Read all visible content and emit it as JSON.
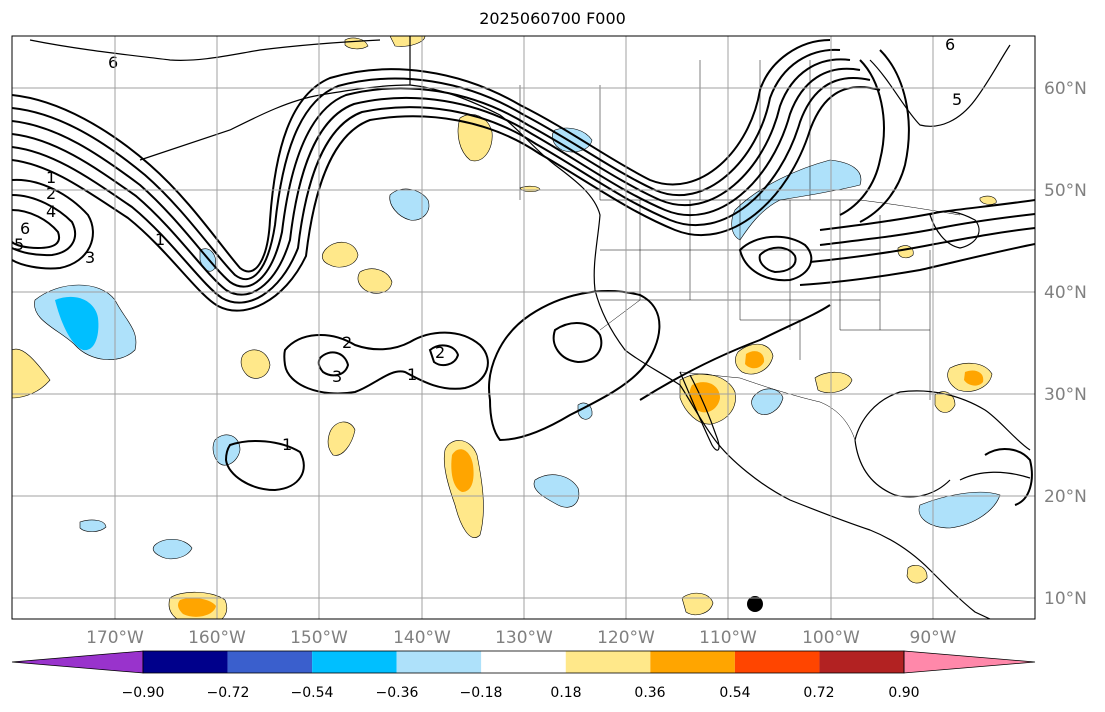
{
  "title": "2025060700 F000",
  "lat_labels": [
    "10°N",
    "20°N",
    "30°N",
    "40°N",
    "50°N",
    "60°N"
  ],
  "lon_labels": [
    "170°W",
    "160°W",
    "150°W",
    "140°W",
    "130°W",
    "120°W",
    "110°W",
    "100°W",
    "90°W"
  ],
  "colorbar": {
    "labels": [
      "−0.90",
      "−0.72",
      "−0.54",
      "−0.36",
      "−0.18",
      "0.18",
      "0.36",
      "0.54",
      "0.72",
      "0.90"
    ],
    "colors": [
      "#9933cc",
      "#00008b",
      "#3a5fcd",
      "#00bfff",
      "#aee1fa",
      "#ffffff",
      "#ffe88a",
      "#ffa500",
      "#ff4500",
      "#b22222",
      "#ff88aa"
    ]
  },
  "contour_labels": [
    "1",
    "2",
    "4",
    "6",
    "5",
    "1",
    "3",
    "2",
    "3",
    "1",
    "2",
    "1",
    "6",
    "6",
    "5"
  ],
  "grid": "on"
}
